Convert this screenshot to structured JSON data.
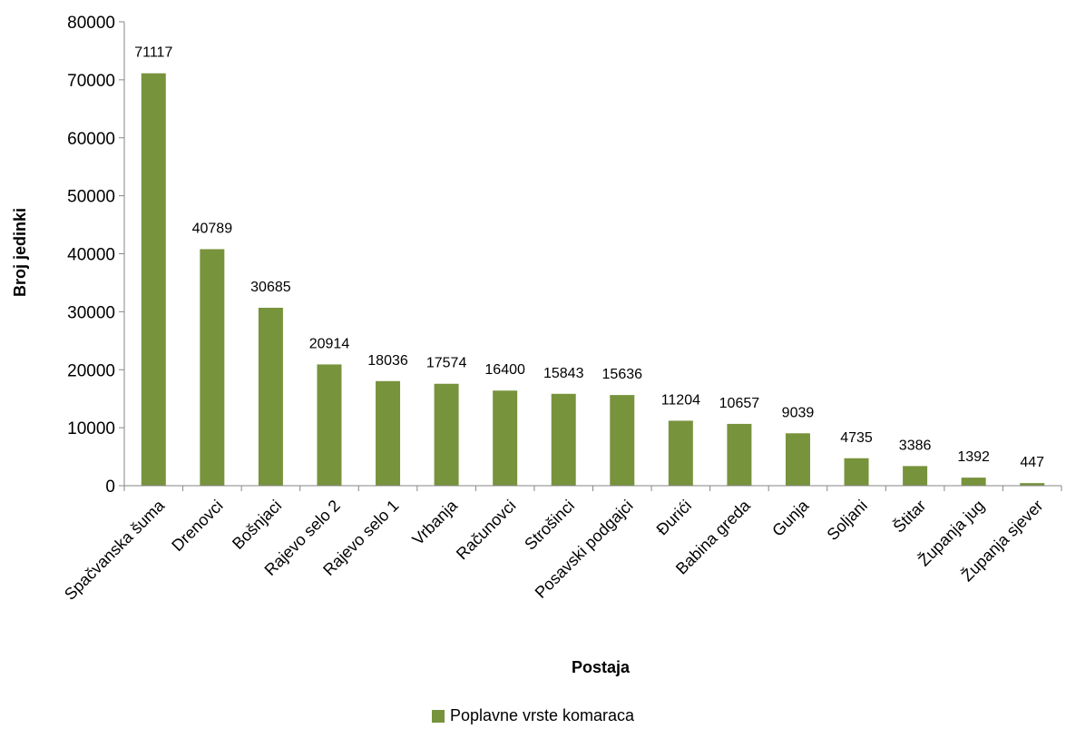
{
  "chart_data": {
    "type": "bar",
    "title": "",
    "xlabel": "Postaja",
    "ylabel": "Broj jedinki",
    "ylim": [
      0,
      80000
    ],
    "yticks": [
      0,
      10000,
      20000,
      30000,
      40000,
      50000,
      60000,
      70000,
      80000
    ],
    "categories": [
      "Spačvanska šuma",
      "Drenovci",
      "Bošnjaci",
      "Rajevo selo 2",
      "Rajevo selo 1",
      "Vrbanja",
      "Računovci",
      "Strošinci",
      "Posavski podgajci",
      "Đurići",
      "Babina greda",
      "Gunja",
      "Soljani",
      "Štitar",
      "Županja jug",
      "Županja sjever"
    ],
    "series": [
      {
        "name": "Poplavne vrste komaraca",
        "color": "#77933C",
        "values": [
          71117,
          40789,
          30685,
          20914,
          18036,
          17574,
          16400,
          15843,
          15636,
          11204,
          10657,
          9039,
          4735,
          3386,
          1392,
          447
        ]
      }
    ],
    "grid": false,
    "legend_position": "bottom"
  }
}
